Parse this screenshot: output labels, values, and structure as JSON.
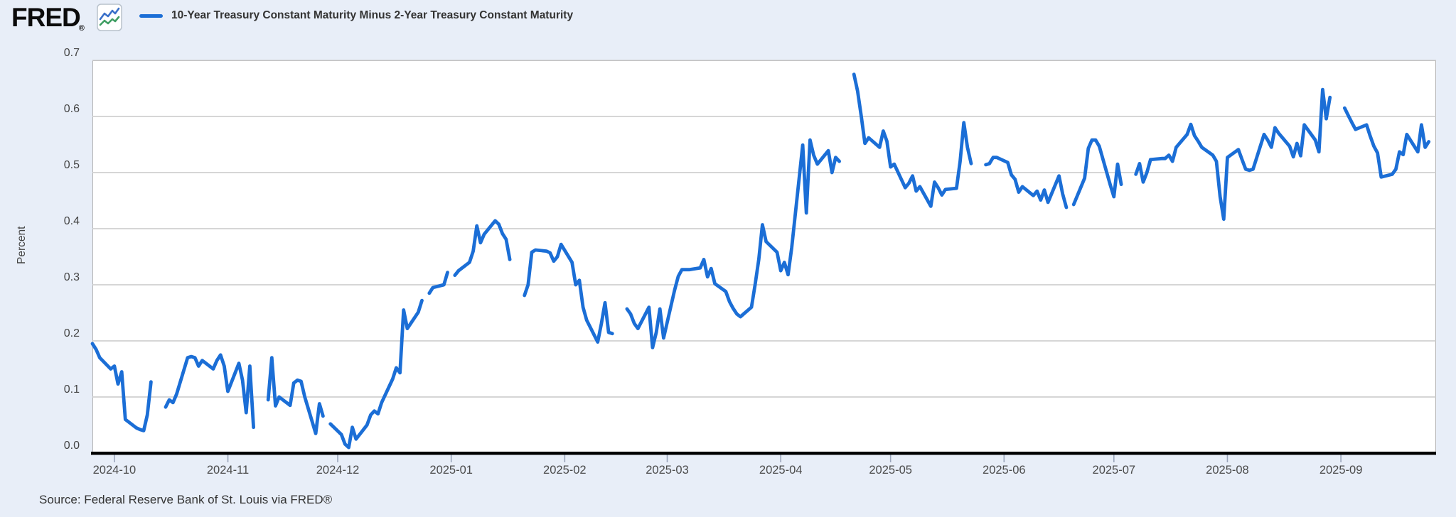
{
  "header": {
    "logo_text": "FRED",
    "logo_registered": "®",
    "legend_label": "10-Year Treasury Constant Maturity Minus 2-Year Treasury Constant Maturity"
  },
  "axes": {
    "y_axis_title": "Percent",
    "y_tick_labels": [
      "0.7",
      "0.6",
      "0.5",
      "0.4",
      "0.3",
      "0.2",
      "0.1",
      "0.0"
    ],
    "x_tick_labels": [
      "2024-10",
      "2024-11",
      "2024-12",
      "2025-01",
      "2025-02",
      "2025-03",
      "2025-04",
      "2025-05",
      "2025-06",
      "2025-07",
      "2025-08",
      "2025-09"
    ]
  },
  "footer": {
    "source_text": "Source: Federal Reserve Bank of St. Louis via FRED®"
  },
  "colors": {
    "page_bg": "#e8eef8",
    "plot_bg": "#ffffff",
    "grid": "#c9c9c9",
    "plot_border": "#b3b3b3",
    "axis_line": "#000000",
    "series_line": "#1b6ed6",
    "tick_mark": "#9aa5bb",
    "icon_blue": "#3a70c9",
    "icon_green": "#3f9e63",
    "icon_border": "#b9c2cc"
  },
  "chart_data": {
    "type": "line",
    "title": "10-Year Treasury Constant Maturity Minus 2-Year Treasury Constant Maturity",
    "ylabel": "Percent",
    "ylim": [
      0,
      0.7
    ],
    "grid": "horizontal",
    "legend_position": "top",
    "frequency": "business-daily, gaps on market holidays",
    "x_domain": [
      "2024-09-25",
      "2025-09-27"
    ],
    "x_tick_dates": [
      "2024-10-01",
      "2024-11-01",
      "2024-12-01",
      "2025-01-01",
      "2025-02-01",
      "2025-03-01",
      "2025-04-01",
      "2025-05-01",
      "2025-06-01",
      "2025-07-01",
      "2025-08-01",
      "2025-09-01"
    ],
    "points": [
      [
        "2024-09-25",
        0.195
      ],
      [
        "2024-09-26",
        0.185
      ],
      [
        "2024-09-27",
        0.17
      ],
      [
        "2024-09-30",
        0.15
      ],
      [
        "2024-10-01",
        0.155
      ],
      [
        "2024-10-02",
        0.123
      ],
      [
        "2024-10-03",
        0.145
      ],
      [
        "2024-10-04",
        0.06
      ],
      [
        "2024-10-07",
        0.045
      ],
      [
        "2024-10-08",
        0.042
      ],
      [
        "2024-10-09",
        0.04
      ],
      [
        "2024-10-10",
        0.068
      ],
      [
        "2024-10-11",
        0.127
      ],
      [
        "2024-10-14",
        null
      ],
      [
        "2024-10-15",
        0.082
      ],
      [
        "2024-10-16",
        0.095
      ],
      [
        "2024-10-17",
        0.09
      ],
      [
        "2024-10-18",
        0.105
      ],
      [
        "2024-10-21",
        0.17
      ],
      [
        "2024-10-22",
        0.172
      ],
      [
        "2024-10-23",
        0.17
      ],
      [
        "2024-10-24",
        0.155
      ],
      [
        "2024-10-25",
        0.165
      ],
      [
        "2024-10-28",
        0.15
      ],
      [
        "2024-10-29",
        0.165
      ],
      [
        "2024-10-30",
        0.175
      ],
      [
        "2024-10-31",
        0.155
      ],
      [
        "2024-11-01",
        0.11
      ],
      [
        "2024-11-04",
        0.16
      ],
      [
        "2024-11-05",
        0.13
      ],
      [
        "2024-11-06",
        0.072
      ],
      [
        "2024-11-07",
        0.155
      ],
      [
        "2024-11-08",
        0.046
      ],
      [
        "2024-11-11",
        null
      ],
      [
        "2024-11-12",
        0.095
      ],
      [
        "2024-11-13",
        0.17
      ],
      [
        "2024-11-14",
        0.084
      ],
      [
        "2024-11-15",
        0.1
      ],
      [
        "2024-11-18",
        0.085
      ],
      [
        "2024-11-19",
        0.125
      ],
      [
        "2024-11-20",
        0.13
      ],
      [
        "2024-11-21",
        0.128
      ],
      [
        "2024-11-22",
        0.1
      ],
      [
        "2024-11-25",
        0.035
      ],
      [
        "2024-11-26",
        0.088
      ],
      [
        "2024-11-27",
        0.066
      ],
      [
        "2024-11-28",
        null
      ],
      [
        "2024-11-29",
        0.052
      ],
      [
        "2024-12-02",
        0.033
      ],
      [
        "2024-12-03",
        0.016
      ],
      [
        "2024-12-04",
        0.01
      ],
      [
        "2024-12-05",
        0.046
      ],
      [
        "2024-12-06",
        0.025
      ],
      [
        "2024-12-09",
        0.05
      ],
      [
        "2024-12-10",
        0.068
      ],
      [
        "2024-12-11",
        0.075
      ],
      [
        "2024-12-12",
        0.07
      ],
      [
        "2024-12-13",
        0.09
      ],
      [
        "2024-12-16",
        0.132
      ],
      [
        "2024-12-17",
        0.152
      ],
      [
        "2024-12-18",
        0.143
      ],
      [
        "2024-12-19",
        0.255
      ],
      [
        "2024-12-20",
        0.222
      ],
      [
        "2024-12-23",
        0.251
      ],
      [
        "2024-12-24",
        0.272
      ],
      [
        "2024-12-25",
        null
      ],
      [
        "2024-12-26",
        0.285
      ],
      [
        "2024-12-27",
        0.295
      ],
      [
        "2024-12-30",
        0.3
      ],
      [
        "2024-12-31",
        0.322
      ],
      [
        "2025-01-01",
        null
      ],
      [
        "2025-01-02",
        0.317
      ],
      [
        "2025-01-03",
        0.325
      ],
      [
        "2025-01-06",
        0.34
      ],
      [
        "2025-01-07",
        0.36
      ],
      [
        "2025-01-08",
        0.405
      ],
      [
        "2025-01-09",
        0.375
      ],
      [
        "2025-01-10",
        0.39
      ],
      [
        "2025-01-13",
        0.414
      ],
      [
        "2025-01-14",
        0.408
      ],
      [
        "2025-01-15",
        0.391
      ],
      [
        "2025-01-16",
        0.381
      ],
      [
        "2025-01-17",
        0.345
      ],
      [
        "2025-01-20",
        null
      ],
      [
        "2025-01-21",
        0.281
      ],
      [
        "2025-01-22",
        0.3
      ],
      [
        "2025-01-23",
        0.358
      ],
      [
        "2025-01-24",
        0.362
      ],
      [
        "2025-01-27",
        0.36
      ],
      [
        "2025-01-28",
        0.357
      ],
      [
        "2025-01-29",
        0.342
      ],
      [
        "2025-01-30",
        0.35
      ],
      [
        "2025-01-31",
        0.372
      ],
      [
        "2025-02-03",
        0.34
      ],
      [
        "2025-02-04",
        0.3
      ],
      [
        "2025-02-05",
        0.308
      ],
      [
        "2025-02-06",
        0.26
      ],
      [
        "2025-02-07",
        0.237
      ],
      [
        "2025-02-10",
        0.198
      ],
      [
        "2025-02-11",
        0.23
      ],
      [
        "2025-02-12",
        0.268
      ],
      [
        "2025-02-13",
        0.215
      ],
      [
        "2025-02-14",
        0.213
      ],
      [
        "2025-02-17",
        null
      ],
      [
        "2025-02-18",
        0.257
      ],
      [
        "2025-02-19",
        0.248
      ],
      [
        "2025-02-20",
        0.231
      ],
      [
        "2025-02-21",
        0.222
      ],
      [
        "2025-02-24",
        0.26
      ],
      [
        "2025-02-25",
        0.188
      ],
      [
        "2025-02-26",
        0.215
      ],
      [
        "2025-02-27",
        0.257
      ],
      [
        "2025-02-28",
        0.205
      ],
      [
        "2025-03-03",
        0.29
      ],
      [
        "2025-03-04",
        0.315
      ],
      [
        "2025-03-05",
        0.327
      ],
      [
        "2025-03-06",
        0.327
      ],
      [
        "2025-03-07",
        0.327
      ],
      [
        "2025-03-10",
        0.33
      ],
      [
        "2025-03-11",
        0.345
      ],
      [
        "2025-03-12",
        0.314
      ],
      [
        "2025-03-13",
        0.329
      ],
      [
        "2025-03-14",
        0.302
      ],
      [
        "2025-03-17",
        0.288
      ],
      [
        "2025-03-18",
        0.27
      ],
      [
        "2025-03-19",
        0.258
      ],
      [
        "2025-03-20",
        0.248
      ],
      [
        "2025-03-21",
        0.243
      ],
      [
        "2025-03-24",
        0.26
      ],
      [
        "2025-03-25",
        0.3
      ],
      [
        "2025-03-26",
        0.345
      ],
      [
        "2025-03-27",
        0.407
      ],
      [
        "2025-03-28",
        0.377
      ],
      [
        "2025-03-31",
        0.358
      ],
      [
        "2025-04-01",
        0.325
      ],
      [
        "2025-04-02",
        0.34
      ],
      [
        "2025-04-03",
        0.318
      ],
      [
        "2025-04-04",
        0.366
      ],
      [
        "2025-04-07",
        0.549
      ],
      [
        "2025-04-08",
        0.428
      ],
      [
        "2025-04-09",
        0.558
      ],
      [
        "2025-04-10",
        0.531
      ],
      [
        "2025-04-11",
        0.515
      ],
      [
        "2025-04-14",
        0.539
      ],
      [
        "2025-04-15",
        0.5
      ],
      [
        "2025-04-16",
        0.527
      ],
      [
        "2025-04-17",
        0.52
      ],
      [
        "2025-04-18",
        null
      ],
      [
        "2025-04-21",
        0.675
      ],
      [
        "2025-04-22",
        0.645
      ],
      [
        "2025-04-23",
        0.6
      ],
      [
        "2025-04-24",
        0.552
      ],
      [
        "2025-04-25",
        0.562
      ],
      [
        "2025-04-28",
        0.545
      ],
      [
        "2025-04-29",
        0.574
      ],
      [
        "2025-04-30",
        0.556
      ],
      [
        "2025-05-01",
        0.51
      ],
      [
        "2025-05-02",
        0.515
      ],
      [
        "2025-05-05",
        0.473
      ],
      [
        "2025-05-06",
        0.481
      ],
      [
        "2025-05-07",
        0.494
      ],
      [
        "2025-05-08",
        0.467
      ],
      [
        "2025-05-09",
        0.475
      ],
      [
        "2025-05-12",
        0.44
      ],
      [
        "2025-05-13",
        0.483
      ],
      [
        "2025-05-14",
        0.473
      ],
      [
        "2025-05-15",
        0.46
      ],
      [
        "2025-05-16",
        0.47
      ],
      [
        "2025-05-19",
        0.472
      ],
      [
        "2025-05-20",
        0.52
      ],
      [
        "2025-05-21",
        0.589
      ],
      [
        "2025-05-22",
        0.545
      ],
      [
        "2025-05-23",
        0.516
      ],
      [
        "2025-05-26",
        null
      ],
      [
        "2025-05-27",
        0.514
      ],
      [
        "2025-05-28",
        0.516
      ],
      [
        "2025-05-29",
        0.527
      ],
      [
        "2025-05-30",
        0.527
      ],
      [
        "2025-06-02",
        0.518
      ],
      [
        "2025-06-03",
        0.496
      ],
      [
        "2025-06-04",
        0.488
      ],
      [
        "2025-06-05",
        0.465
      ],
      [
        "2025-06-06",
        0.475
      ],
      [
        "2025-06-09",
        0.459
      ],
      [
        "2025-06-10",
        0.467
      ],
      [
        "2025-06-11",
        0.451
      ],
      [
        "2025-06-12",
        0.469
      ],
      [
        "2025-06-13",
        0.447
      ],
      [
        "2025-06-16",
        0.494
      ],
      [
        "2025-06-17",
        0.462
      ],
      [
        "2025-06-18",
        0.438
      ],
      [
        "2025-06-19",
        null
      ],
      [
        "2025-06-20",
        0.443
      ],
      [
        "2025-06-23",
        0.49
      ],
      [
        "2025-06-24",
        0.543
      ],
      [
        "2025-06-25",
        0.558
      ],
      [
        "2025-06-26",
        0.558
      ],
      [
        "2025-06-27",
        0.547
      ],
      [
        "2025-06-30",
        0.478
      ],
      [
        "2025-07-01",
        0.457
      ],
      [
        "2025-07-02",
        0.515
      ],
      [
        "2025-07-03",
        0.479
      ],
      [
        "2025-07-04",
        null
      ],
      [
        "2025-07-07",
        0.497
      ],
      [
        "2025-07-08",
        0.516
      ],
      [
        "2025-07-09",
        0.483
      ],
      [
        "2025-07-10",
        0.5
      ],
      [
        "2025-07-11",
        0.523
      ],
      [
        "2025-07-14",
        0.525
      ],
      [
        "2025-07-15",
        0.525
      ],
      [
        "2025-07-16",
        0.531
      ],
      [
        "2025-07-17",
        0.52
      ],
      [
        "2025-07-18",
        0.545
      ],
      [
        "2025-07-21",
        0.568
      ],
      [
        "2025-07-22",
        0.586
      ],
      [
        "2025-07-23",
        0.566
      ],
      [
        "2025-07-24",
        0.556
      ],
      [
        "2025-07-25",
        0.545
      ],
      [
        "2025-07-28",
        0.531
      ],
      [
        "2025-07-29",
        0.52
      ],
      [
        "2025-07-30",
        0.457
      ],
      [
        "2025-07-31",
        0.417
      ],
      [
        "2025-08-01",
        0.527
      ],
      [
        "2025-08-04",
        0.541
      ],
      [
        "2025-08-05",
        0.523
      ],
      [
        "2025-08-06",
        0.506
      ],
      [
        "2025-08-07",
        0.504
      ],
      [
        "2025-08-08",
        0.506
      ],
      [
        "2025-08-11",
        0.568
      ],
      [
        "2025-08-12",
        0.558
      ],
      [
        "2025-08-13",
        0.545
      ],
      [
        "2025-08-14",
        0.58
      ],
      [
        "2025-08-15",
        0.57
      ],
      [
        "2025-08-18",
        0.547
      ],
      [
        "2025-08-19",
        0.528
      ],
      [
        "2025-08-20",
        0.552
      ],
      [
        "2025-08-21",
        0.53
      ],
      [
        "2025-08-22",
        0.585
      ],
      [
        "2025-08-25",
        0.558
      ],
      [
        "2025-08-26",
        0.537
      ],
      [
        "2025-08-27",
        0.648
      ],
      [
        "2025-08-28",
        0.596
      ],
      [
        "2025-08-29",
        0.634
      ],
      [
        "2025-09-01",
        null
      ],
      [
        "2025-09-02",
        0.615
      ],
      [
        "2025-09-03",
        0.602
      ],
      [
        "2025-09-04",
        0.589
      ],
      [
        "2025-09-05",
        0.577
      ],
      [
        "2025-09-08",
        0.585
      ],
      [
        "2025-09-09",
        0.565
      ],
      [
        "2025-09-10",
        0.547
      ],
      [
        "2025-09-11",
        0.535
      ],
      [
        "2025-09-12",
        0.492
      ],
      [
        "2025-09-15",
        0.497
      ],
      [
        "2025-09-16",
        0.506
      ],
      [
        "2025-09-17",
        0.537
      ],
      [
        "2025-09-18",
        0.532
      ],
      [
        "2025-09-19",
        0.568
      ],
      [
        "2025-09-22",
        0.537
      ],
      [
        "2025-09-23",
        0.585
      ],
      [
        "2025-09-24",
        0.545
      ],
      [
        "2025-09-25",
        0.555
      ]
    ]
  }
}
